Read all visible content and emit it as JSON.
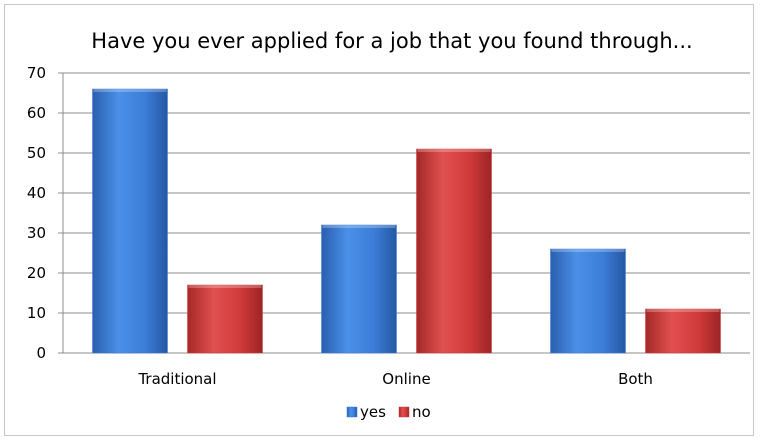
{
  "chart_data": {
    "type": "bar",
    "title": "Have you ever applied for a job that you found through...",
    "categories": [
      "Traditional",
      "Online",
      "Both"
    ],
    "series": [
      {
        "name": "yes",
        "values": [
          66,
          32,
          26
        ],
        "color": "#3b7dd8"
      },
      {
        "name": "no",
        "values": [
          17,
          51,
          11
        ],
        "color": "#d23a3a"
      }
    ],
    "ylim": [
      0,
      70
    ],
    "yticks": [
      0,
      10,
      20,
      30,
      40,
      50,
      60,
      70
    ],
    "grid": true,
    "legend": "bottom",
    "xlabel": "",
    "ylabel": ""
  }
}
